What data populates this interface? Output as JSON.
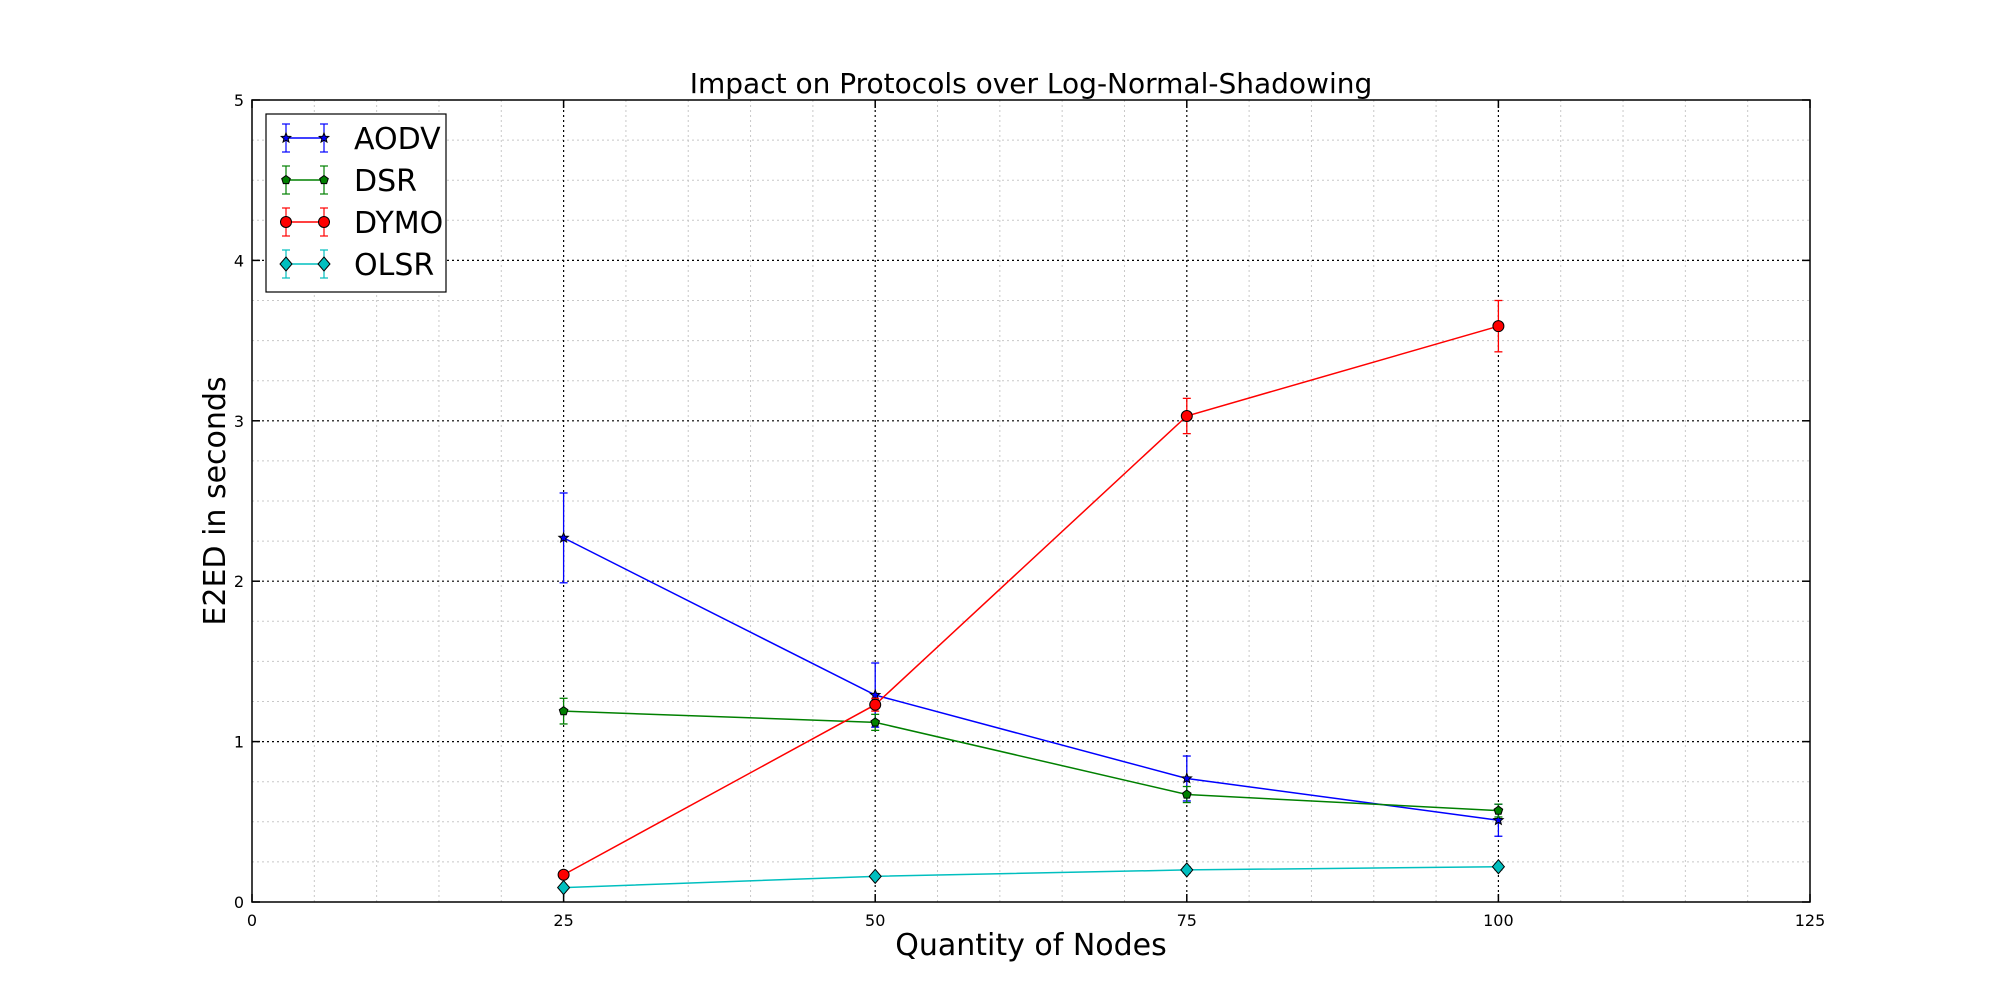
{
  "chart_data": {
    "type": "line",
    "title": "Impact on Protocols over Log-Normal-Shadowing",
    "xlabel": "Quantity of Nodes",
    "ylabel": "E2ED in seconds",
    "xlim": [
      0,
      125
    ],
    "ylim": [
      0,
      5
    ],
    "x_ticks": [
      0,
      25,
      50,
      75,
      100,
      125
    ],
    "y_ticks": [
      0,
      1,
      2,
      3,
      4,
      5
    ],
    "grid": true,
    "legend_position": "upper-left",
    "x": [
      25,
      50,
      75,
      100
    ],
    "series": [
      {
        "name": "AODV",
        "color": "#0000ff",
        "marker": "star",
        "values": [
          2.27,
          1.29,
          0.77,
          0.51
        ],
        "error": [
          0.28,
          0.2,
          0.14,
          0.1
        ]
      },
      {
        "name": "DSR",
        "color": "#008000",
        "marker": "pentagon",
        "values": [
          1.19,
          1.12,
          0.67,
          0.57
        ],
        "error": [
          0.08,
          0.05,
          0.05,
          0.04
        ]
      },
      {
        "name": "DYMO",
        "color": "#ff0000",
        "marker": "circle",
        "values": [
          0.17,
          1.23,
          3.03,
          3.59
        ],
        "error": [
          0.02,
          0.04,
          0.11,
          0.16
        ]
      },
      {
        "name": "OLSR",
        "color": "#00bfbf",
        "marker": "diamond",
        "values": [
          0.09,
          0.16,
          0.2,
          0.22
        ],
        "error": [
          0.01,
          0.01,
          0.02,
          0.02
        ]
      }
    ]
  }
}
